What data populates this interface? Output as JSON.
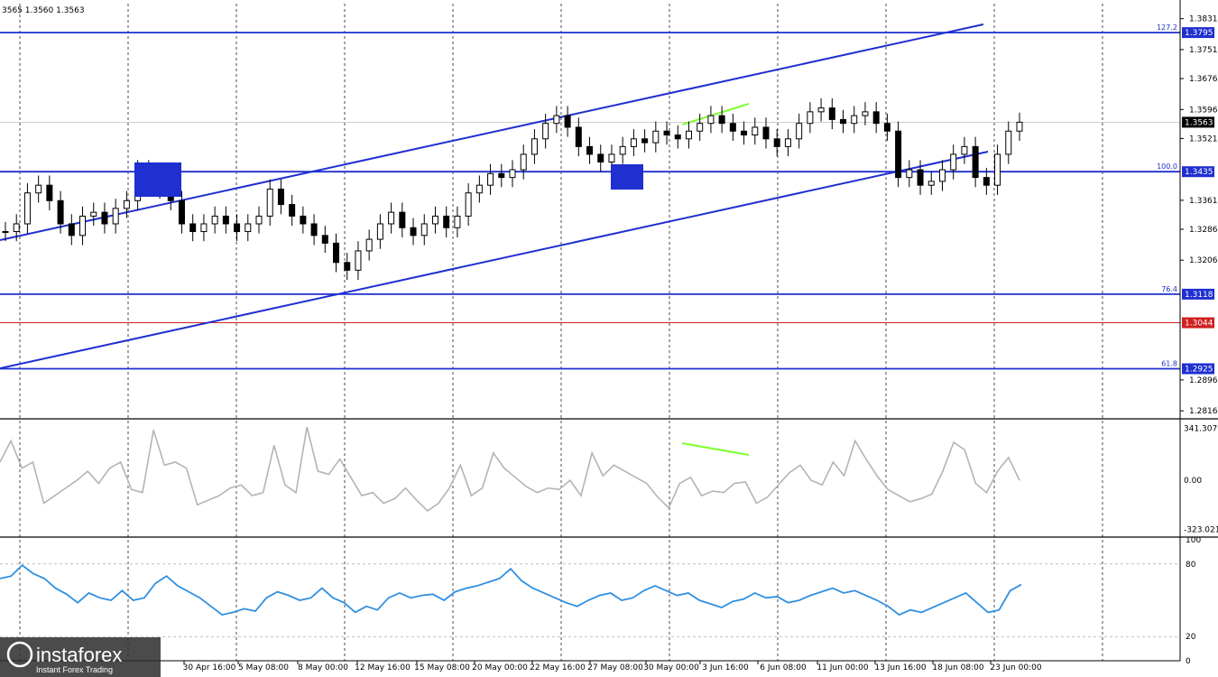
{
  "header": {
    "ohlc_text": "3565 1.3560 1.3563"
  },
  "watermark": {
    "brand": "instaforex",
    "tagline": "Instant Forex Trading"
  },
  "colors": {
    "channel": "#1f2fd0",
    "level_blue": "#1f2fd0",
    "level_red": "#d02020",
    "divergence": "#7fff2f",
    "cci": "#b4b4b4",
    "rsi": "#2f8fe0",
    "candle": "#000000"
  },
  "chart_data": [
    {
      "type": "candlestick",
      "panel": "price",
      "y_ticks": [
        "1.3831",
        "1.3751",
        "1.3676",
        "1.3596",
        "1.3521",
        "1.3361",
        "1.3286",
        "1.3206",
        "1.2896",
        "1.2816"
      ],
      "ylim": [
        1.28,
        1.387
      ],
      "x_tick_labels": [
        "30 Apr 16:00",
        "5 May 08:00",
        "8 May 00:00",
        "12 May 16:00",
        "15 May 08:00",
        "20 May 00:00",
        "22 May 16:00",
        "27 May 08:00",
        "30 May 00:00",
        "3 Jun 16:00",
        "6 Jun 08:00",
        "11 Jun 00:00",
        "13 Jun 16:00",
        "18 Jun 08:00",
        "23 Jun 00:00"
      ],
      "current_price": "1.3563",
      "levels": [
        {
          "value": 1.3795,
          "label": "1.3795",
          "fib": "127.2",
          "color": "blue"
        },
        {
          "value": 1.3435,
          "label": "1.3435",
          "fib": "100.0",
          "color": "blue"
        },
        {
          "value": 1.3118,
          "label": "1.3118",
          "fib": "76.4",
          "color": "blue"
        },
        {
          "value": 1.3044,
          "label": "1.3044",
          "fib": "",
          "color": "red"
        },
        {
          "value": 1.2925,
          "label": "1.2925",
          "fib": "61.8",
          "color": "blue"
        }
      ],
      "close_series": [
        1.328,
        1.33,
        1.338,
        1.34,
        1.336,
        1.33,
        1.327,
        1.332,
        1.333,
        1.33,
        1.334,
        1.336,
        1.344,
        1.342,
        1.339,
        1.336,
        1.33,
        1.328,
        1.33,
        1.332,
        1.33,
        1.328,
        1.33,
        1.332,
        1.339,
        1.335,
        1.332,
        1.33,
        1.327,
        1.325,
        1.32,
        1.318,
        1.323,
        1.326,
        1.33,
        1.333,
        1.329,
        1.327,
        1.33,
        1.332,
        1.329,
        1.332,
        1.338,
        1.34,
        1.343,
        1.342,
        1.344,
        1.348,
        1.352,
        1.356,
        1.358,
        1.355,
        1.35,
        1.348,
        1.346,
        1.348,
        1.35,
        1.352,
        1.351,
        1.354,
        1.353,
        1.352,
        1.354,
        1.356,
        1.358,
        1.356,
        1.354,
        1.353,
        1.355,
        1.352,
        1.35,
        1.352,
        1.356,
        1.359,
        1.36,
        1.357,
        1.356,
        1.358,
        1.359,
        1.356,
        1.354,
        1.342,
        1.344,
        1.34,
        1.341,
        1.344,
        1.348,
        1.35,
        1.342,
        1.34,
        1.348,
        1.354,
        1.3563
      ]
    },
    {
      "type": "line",
      "panel": "cci",
      "series_color": "#b4b4b4",
      "y_ticks": [
        "341.3079",
        "0.00",
        "-323.0213"
      ],
      "ylim": [
        -360,
        380
      ],
      "values": [
        120,
        260,
        80,
        120,
        -150,
        -100,
        -50,
        0,
        60,
        -20,
        80,
        120,
        -60,
        -80,
        330,
        100,
        120,
        80,
        -160,
        -130,
        -100,
        -50,
        -30,
        -100,
        -80,
        230,
        -30,
        -80,
        350,
        60,
        40,
        140,
        20,
        -100,
        -80,
        -150,
        -120,
        -50,
        -130,
        -200,
        -150,
        -50,
        100,
        -100,
        -50,
        180,
        80,
        20,
        -40,
        -80,
        -50,
        -60,
        0,
        -100,
        180,
        30,
        100,
        60,
        20,
        -20,
        -110,
        -180,
        -20,
        20,
        -100,
        -70,
        -80,
        -20,
        -10,
        -150,
        -110,
        -30,
        50,
        100,
        0,
        -30,
        120,
        30,
        260,
        140,
        30,
        -60,
        -100,
        -140,
        -120,
        -90,
        60,
        250,
        200,
        -20,
        -80,
        60,
        150,
        0
      ]
    },
    {
      "type": "line",
      "panel": "rsi",
      "series_color": "#2f8fe0",
      "y_ticks": [
        "100",
        "80",
        "20",
        "0"
      ],
      "ylim": [
        0,
        100
      ],
      "values": [
        68,
        70,
        79,
        72,
        68,
        60,
        55,
        48,
        56,
        52,
        50,
        58,
        50,
        52,
        64,
        70,
        62,
        57,
        52,
        45,
        38,
        40,
        43,
        41,
        52,
        57,
        54,
        50,
        52,
        60,
        52,
        48,
        40,
        45,
        42,
        52,
        56,
        52,
        54,
        55,
        50,
        57,
        60,
        62,
        65,
        68,
        76,
        66,
        60,
        56,
        52,
        48,
        45,
        50,
        54,
        56,
        50,
        52,
        58,
        62,
        58,
        54,
        56,
        50,
        47,
        44,
        49,
        51,
        56,
        52,
        53,
        48,
        50,
        54,
        57,
        60,
        56,
        58,
        54,
        50,
        45,
        38,
        42,
        40,
        44,
        48,
        52,
        56,
        48,
        40,
        42,
        58,
        63
      ]
    }
  ]
}
